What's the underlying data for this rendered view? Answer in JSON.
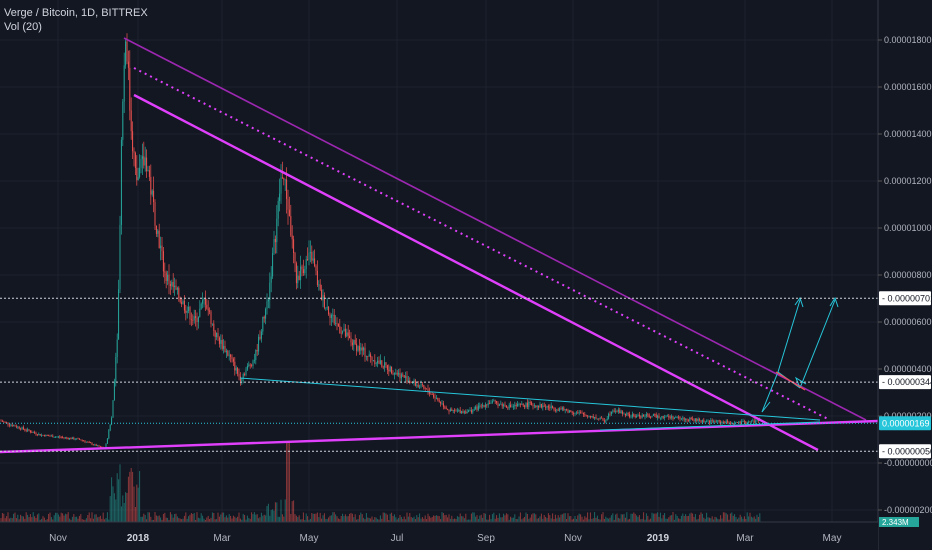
{
  "header": {
    "symbol_line": "Verge / Bitcoin, 1D, BITTREX",
    "volume_line": "Vol (20)"
  },
  "colors": {
    "background": "#131722",
    "up": "#26a69a",
    "down": "#ef5350",
    "magenta": "#e040fb",
    "purple": "#9c27b0",
    "teal": "#26c6da",
    "axis_bg": "#131722"
  },
  "chart_data": {
    "type": "candlestick",
    "symbol": "Verge / Bitcoin",
    "interval": "1D",
    "exchange": "BITTREX",
    "y_ticks": [
      "0.00001800",
      "0.00001600",
      "0.00001400",
      "0.00001200",
      "0.00001000",
      "0.00000800",
      "0.00000600",
      "0.00000400",
      "0.00000200",
      "-0.00000000",
      "-0.00000200"
    ],
    "x_ticks": [
      "Nov",
      "2018",
      "Mar",
      "May",
      "Jul",
      "Sep",
      "Nov",
      "2019",
      "Mar",
      "May"
    ],
    "price_labels": [
      {
        "text": "0.00000701",
        "value": 7.01e-06,
        "style": "plain"
      },
      {
        "text": "0.00000344",
        "value": 3.44e-06,
        "style": "plain"
      },
      {
        "text": "0.00000169",
        "value": 1.69e-06,
        "style": "current"
      },
      {
        "text": "0.00000050",
        "value": 5e-07,
        "style": "plain"
      }
    ],
    "volume_label": "2.343M",
    "y_range": [
      -2.5e-06,
      1.95e-05
    ],
    "x_range_months": [
      "2017-10",
      "2019-05"
    ]
  }
}
